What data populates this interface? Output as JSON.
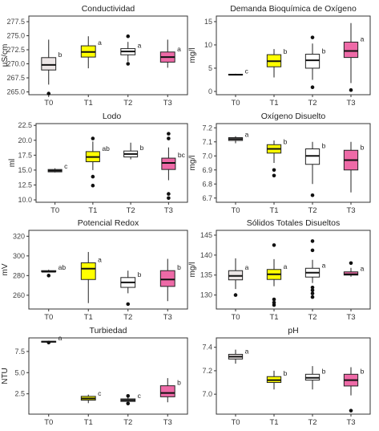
{
  "chart_data": [
    {
      "type": "box",
      "title": "Conductividad",
      "ylabel": "µS/cm",
      "categories": [
        "T0",
        "T1",
        "T2",
        "T3"
      ],
      "ylim": [
        264.5,
        278.5
      ],
      "yticks": [
        265.0,
        267.5,
        270.0,
        272.5,
        275.0,
        277.5
      ],
      "ytick_labels": [
        "265.0",
        "267.5",
        "270.0",
        "272.5",
        "275.0",
        "277.5"
      ],
      "boxes": [
        {
          "cat": "T0",
          "low": 266.3,
          "q1": 268.9,
          "median": 269.8,
          "q3": 271.1,
          "high": 274.3,
          "outliers": [
            264.7
          ],
          "letter": "b",
          "color": "#ece6e6"
        },
        {
          "cat": "T1",
          "low": 269.2,
          "q1": 271.2,
          "median": 272.1,
          "q3": 273.2,
          "high": 274.9,
          "outliers": [],
          "letter": "a",
          "color": "#ffff00"
        },
        {
          "cat": "T2",
          "low": 270.4,
          "q1": 271.6,
          "median": 272.2,
          "q3": 272.7,
          "high": 273.9,
          "outliers": [
            270.0,
            274.9
          ],
          "letter": "a",
          "color": "#ffffff"
        },
        {
          "cat": "T3",
          "low": 269.3,
          "q1": 270.3,
          "median": 271.2,
          "q3": 272.1,
          "high": 274.3,
          "outliers": [],
          "letter": "a",
          "color": "#ee6aa7"
        }
      ]
    },
    {
      "type": "box",
      "title": "Demanda Bioquímica de Oxígeno",
      "ylabel": "mg/l",
      "categories": [
        "T0",
        "T1",
        "T2",
        "T3"
      ],
      "ylim": [
        -0.7,
        16.2
      ],
      "yticks": [
        0,
        5,
        10,
        15
      ],
      "ytick_labels": [
        "0",
        "5",
        "10",
        "15"
      ],
      "boxes": [
        {
          "cat": "T0",
          "low": 3.6,
          "q1": 3.6,
          "median": 3.6,
          "q3": 3.7,
          "high": 3.8,
          "outliers": [],
          "letter": "c",
          "color": "#ece6e6"
        },
        {
          "cat": "T1",
          "low": 3.0,
          "q1": 5.3,
          "median": 6.5,
          "q3": 7.9,
          "high": 9.1,
          "outliers": [],
          "letter": "b",
          "color": "#ffff00"
        },
        {
          "cat": "T2",
          "low": 2.5,
          "q1": 5.0,
          "median": 6.7,
          "q3": 8.0,
          "high": 10.3,
          "outliers": [
            0.9,
            11.6
          ],
          "letter": "b",
          "color": "#ffffff"
        },
        {
          "cat": "T3",
          "low": 1.8,
          "q1": 7.3,
          "median": 8.7,
          "q3": 10.6,
          "high": 14.7,
          "outliers": [
            0.3
          ],
          "letter": "a",
          "color": "#ee6aa7"
        }
      ]
    },
    {
      "type": "box",
      "title": "Lodo",
      "ylabel": "ml",
      "categories": [
        "T0",
        "T1",
        "T2",
        "T3"
      ],
      "ylim": [
        9.6,
        22.8
      ],
      "yticks": [
        10.0,
        12.5,
        15.0,
        17.5,
        20.0,
        22.5
      ],
      "ytick_labels": [
        "10.0",
        "12.5",
        "15.0",
        "17.5",
        "20.0",
        "22.5"
      ],
      "boxes": [
        {
          "cat": "T0",
          "low": 14.6,
          "q1": 14.7,
          "median": 14.9,
          "q3": 15.1,
          "high": 15.3,
          "outliers": [],
          "letter": "c",
          "color": "#ece6e6"
        },
        {
          "cat": "T1",
          "low": 15.0,
          "q1": 16.4,
          "median": 17.2,
          "q3": 18.1,
          "high": 19.8,
          "outliers": [
            12.4,
            13.9,
            20.3
          ],
          "letter": "ab",
          "color": "#ffff00"
        },
        {
          "cat": "T2",
          "low": 16.8,
          "q1": 17.2,
          "median": 17.7,
          "q3": 18.2,
          "high": 19.6,
          "outliers": [],
          "letter": "b",
          "color": "#ffffff"
        },
        {
          "cat": "T3",
          "low": 13.3,
          "q1": 15.1,
          "median": 16.2,
          "q3": 17.0,
          "high": 18.8,
          "outliers": [
            10.3,
            11.0,
            20.3,
            21.1
          ],
          "letter": "bc",
          "color": "#ee6aa7"
        }
      ]
    },
    {
      "type": "box",
      "title": "Oxígeno Disuelto",
      "ylabel": "mg/l",
      "categories": [
        "T0",
        "T1",
        "T2",
        "T3"
      ],
      "ylim": [
        6.67,
        7.23
      ],
      "yticks": [
        6.7,
        6.8,
        6.9,
        7.0,
        7.1,
        7.2
      ],
      "ytick_labels": [
        "6.7",
        "6.8",
        "6.9",
        "7.0",
        "7.1",
        "7.2"
      ],
      "boxes": [
        {
          "cat": "T0",
          "low": 7.09,
          "q1": 7.11,
          "median": 7.12,
          "q3": 7.13,
          "high": 7.14,
          "outliers": [],
          "letter": "a",
          "color": "#ece6e6"
        },
        {
          "cat": "T1",
          "low": 6.95,
          "q1": 7.02,
          "median": 7.05,
          "q3": 7.08,
          "high": 7.11,
          "outliers": [
            6.86,
            6.9
          ],
          "letter": "b",
          "color": "#ffff00"
        },
        {
          "cat": "T2",
          "low": 6.8,
          "q1": 6.94,
          "median": 7.0,
          "q3": 7.05,
          "high": 7.1,
          "outliers": [
            6.72
          ],
          "letter": "b",
          "color": "#ffffff"
        },
        {
          "cat": "T3",
          "low": 6.74,
          "q1": 6.9,
          "median": 6.97,
          "q3": 7.04,
          "high": 7.1,
          "outliers": [],
          "letter": "b",
          "color": "#ee6aa7"
        }
      ]
    },
    {
      "type": "box",
      "title": "Potencial Redox",
      "ylabel": "mV",
      "categories": [
        "T0",
        "T1",
        "T2",
        "T3"
      ],
      "ylim": [
        246,
        326
      ],
      "yticks": [
        260,
        280,
        300,
        320
      ],
      "ytick_labels": [
        "260",
        "280",
        "300",
        "320"
      ],
      "boxes": [
        {
          "cat": "T0",
          "low": 284,
          "q1": 284,
          "median": 284,
          "q3": 285,
          "high": 286,
          "outliers": [
            280
          ],
          "letter": "ab",
          "color": "#ece6e6"
        },
        {
          "cat": "T1",
          "low": 252,
          "q1": 276,
          "median": 287,
          "q3": 293,
          "high": 304,
          "outliers": [],
          "letter": "a",
          "color": "#ffff00"
        },
        {
          "cat": "T2",
          "low": 262,
          "q1": 268,
          "median": 273,
          "q3": 278,
          "high": 285,
          "outliers": [
            251
          ],
          "letter": "b",
          "color": "#ffffff"
        },
        {
          "cat": "T3",
          "low": 254,
          "q1": 269,
          "median": 276,
          "q3": 285,
          "high": 297,
          "outliers": [],
          "letter": "b",
          "color": "#ee6aa7"
        }
      ]
    },
    {
      "type": "box",
      "title": "Sólidos Totales Disueltos",
      "ylabel": "mg/l",
      "categories": [
        "T0",
        "T1",
        "T2",
        "T3"
      ],
      "ylim": [
        126.5,
        146.2
      ],
      "yticks": [
        130,
        135,
        140,
        145
      ],
      "ytick_labels": [
        "130",
        "135",
        "140",
        "145"
      ],
      "boxes": [
        {
          "cat": "T0",
          "low": 131.5,
          "q1": 133.8,
          "median": 134.8,
          "q3": 136.1,
          "high": 139.2,
          "outliers": [
            130.0
          ],
          "letter": "a",
          "color": "#ece6e6"
        },
        {
          "cat": "T1",
          "low": 132.2,
          "q1": 133.9,
          "median": 135.2,
          "q3": 136.4,
          "high": 139.0,
          "outliers": [
            127.5,
            128.1,
            128.9,
            142.5
          ],
          "letter": "a",
          "color": "#ffff00"
        },
        {
          "cat": "T2",
          "low": 133.0,
          "q1": 134.5,
          "median": 135.6,
          "q3": 136.7,
          "high": 138.8,
          "outliers": [
            129.5,
            130.4,
            131.2,
            131.9,
            141.2,
            143.5
          ],
          "letter": "a",
          "color": "#ffffff"
        },
        {
          "cat": "T3",
          "low": 134.6,
          "q1": 135.0,
          "median": 135.2,
          "q3": 135.8,
          "high": 136.8,
          "outliers": [
            138.0
          ],
          "letter": "a",
          "color": "#ee6aa7"
        }
      ]
    },
    {
      "type": "box",
      "title": "Turbiedad",
      "ylabel": "NTU",
      "categories": [
        "T0",
        "T1",
        "T2",
        "T3"
      ],
      "ylim": [
        0.1,
        9.1
      ],
      "yticks": [
        2.5,
        5.0,
        7.5
      ],
      "ytick_labels": [
        "2.5",
        "5.0",
        "7.5"
      ],
      "boxes": [
        {
          "cat": "T0",
          "low": 8.55,
          "q1": 8.6,
          "median": 8.65,
          "q3": 8.7,
          "high": 8.75,
          "outliers": [
            8.55
          ],
          "letter": "a",
          "color": "#ece6e6"
        },
        {
          "cat": "T1",
          "low": 1.4,
          "q1": 1.75,
          "median": 1.95,
          "q3": 2.2,
          "high": 2.4,
          "outliers": [],
          "letter": "c",
          "color": "#ffff00"
        },
        {
          "cat": "T2",
          "low": 1.5,
          "q1": 1.6,
          "median": 1.75,
          "q3": 1.9,
          "high": 2.05,
          "outliers": [
            1.35,
            2.25
          ],
          "letter": "c",
          "color": "#ffffff"
        },
        {
          "cat": "T3",
          "low": 1.5,
          "q1": 2.15,
          "median": 2.6,
          "q3": 3.45,
          "high": 4.35,
          "outliers": [],
          "letter": "b",
          "color": "#ee6aa7"
        }
      ]
    },
    {
      "type": "box",
      "title": "pH",
      "ylabel": "",
      "categories": [
        "T0",
        "T1",
        "T2",
        "T3"
      ],
      "ylim": [
        6.83,
        7.48
      ],
      "yticks": [
        7.0,
        7.2,
        7.4
      ],
      "ytick_labels": [
        "7.0",
        "7.2",
        "7.4"
      ],
      "boxes": [
        {
          "cat": "T0",
          "low": 7.26,
          "q1": 7.3,
          "median": 7.32,
          "q3": 7.34,
          "high": 7.38,
          "outliers": [],
          "letter": "a",
          "color": "#ece6e6"
        },
        {
          "cat": "T1",
          "low": 7.04,
          "q1": 7.1,
          "median": 7.12,
          "q3": 7.15,
          "high": 7.2,
          "outliers": [],
          "letter": "b",
          "color": "#ffff00"
        },
        {
          "cat": "T2",
          "low": 7.04,
          "q1": 7.12,
          "median": 7.14,
          "q3": 7.17,
          "high": 7.24,
          "outliers": [],
          "letter": "b",
          "color": "#ffffff"
        },
        {
          "cat": "T3",
          "low": 6.99,
          "q1": 7.07,
          "median": 7.12,
          "q3": 7.17,
          "high": 7.23,
          "outliers": [
            6.86
          ],
          "letter": "b",
          "color": "#ee6aa7"
        }
      ]
    }
  ]
}
